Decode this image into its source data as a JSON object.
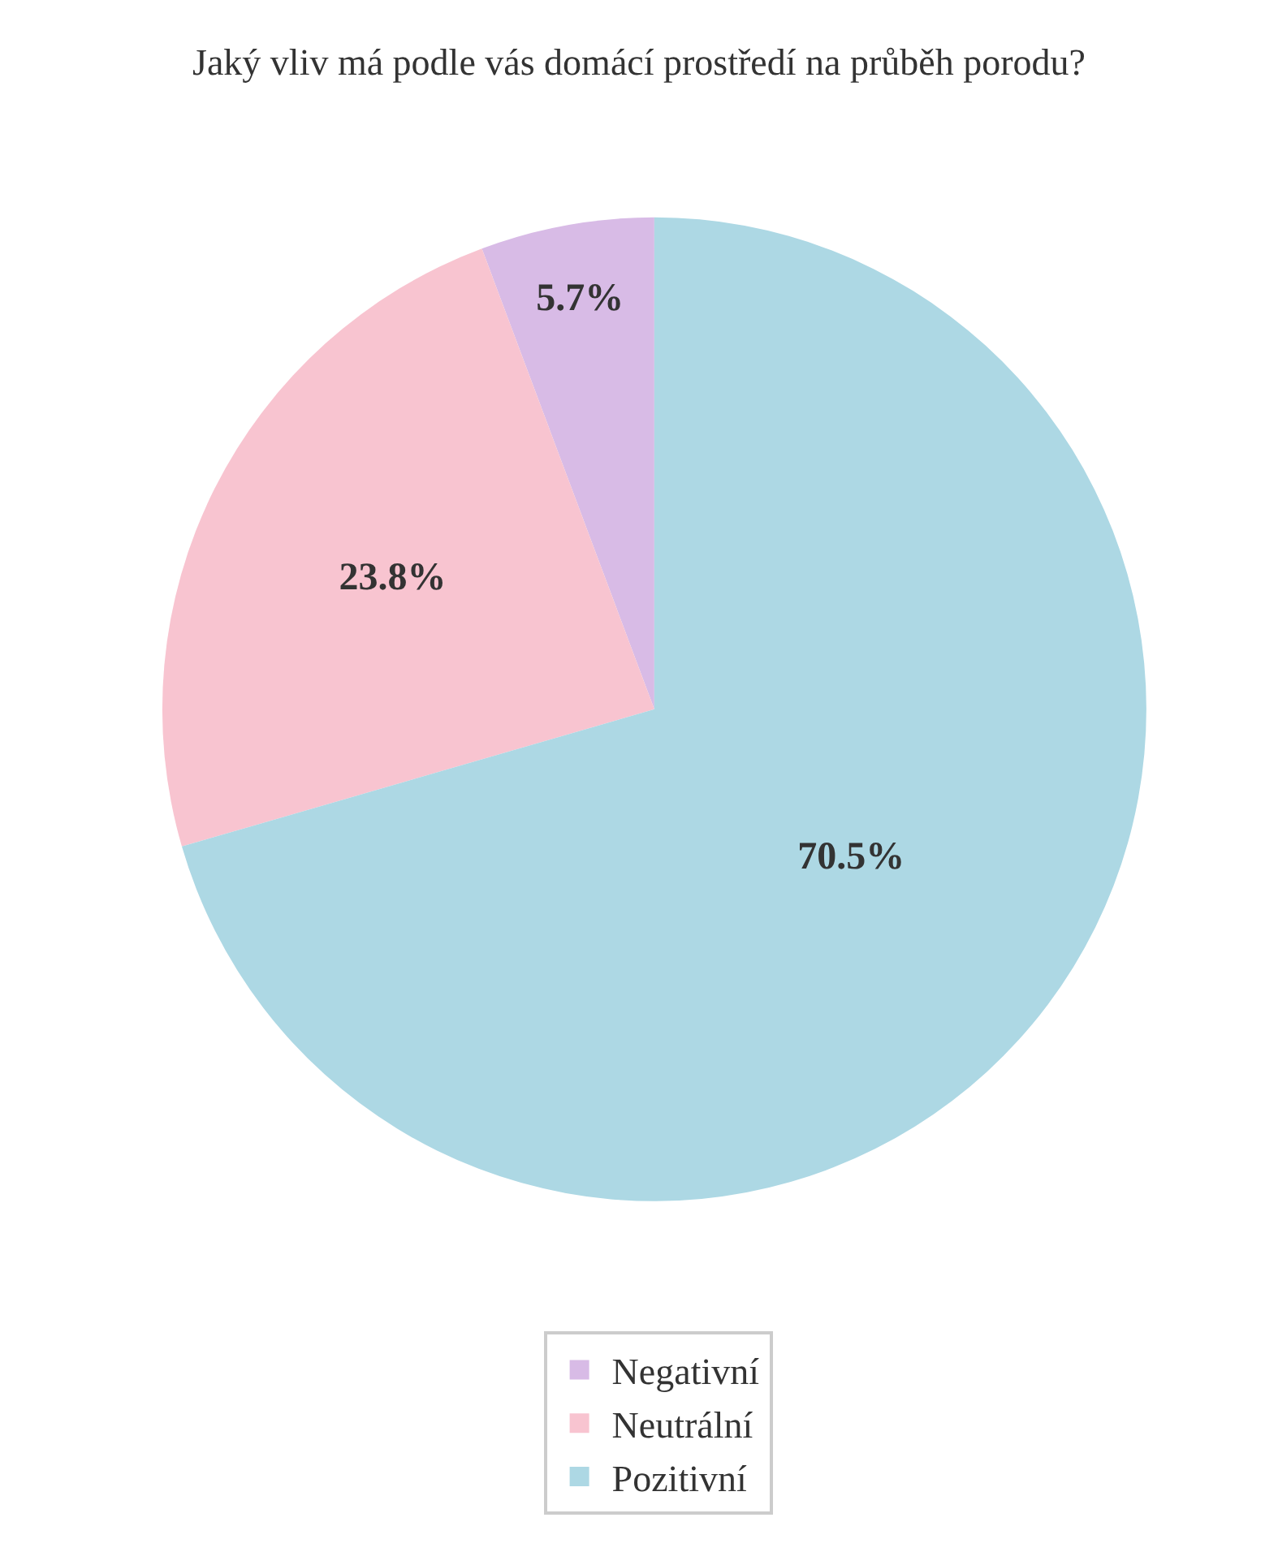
{
  "chart_data": {
    "type": "pie",
    "title": "Jaký vliv má podle vás domácí prostředí na průběh porodu?",
    "categories": [
      "Negativní",
      "Neutrální",
      "Pozitivní"
    ],
    "values": [
      5.7,
      23.8,
      70.5
    ],
    "colors": [
      "#d8bbe6",
      "#f8c4d0",
      "#add8e4"
    ],
    "value_labels": [
      "5.7%",
      "23.8%",
      "70.5%"
    ],
    "legend": "bottom"
  }
}
